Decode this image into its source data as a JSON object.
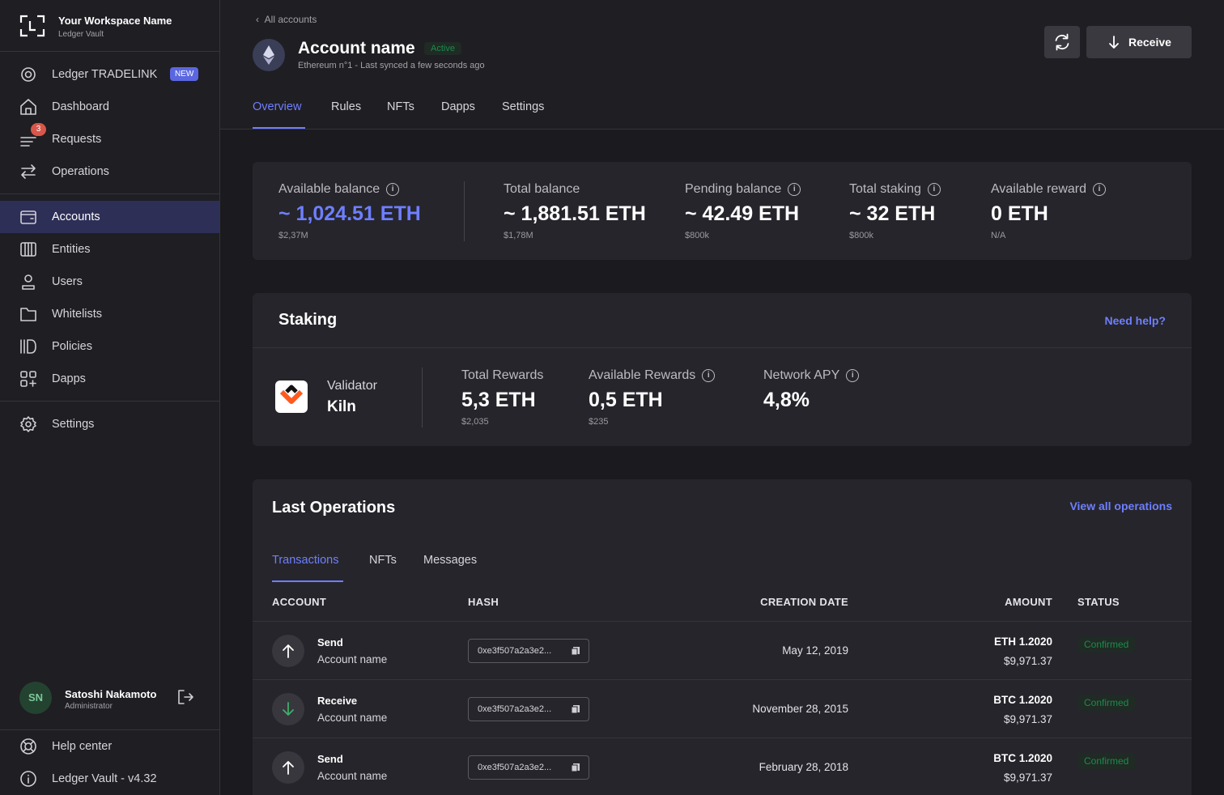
{
  "workspace": {
    "name": "Your Workspace Name",
    "sub": "Ledger Vault"
  },
  "nav": {
    "tradelink": "Ledger TRADELINK",
    "tradelink_badge": "NEW",
    "dashboard": "Dashboard",
    "requests": "Requests",
    "requests_count": "3",
    "operations": "Operations",
    "accounts": "Accounts",
    "entities": "Entities",
    "users": "Users",
    "whitelists": "Whitelists",
    "policies": "Policies",
    "dapps": "Dapps",
    "settings": "Settings"
  },
  "user": {
    "initials": "SN",
    "name": "Satoshi Nakamoto",
    "role": "Administrator"
  },
  "footer": {
    "help": "Help center",
    "version": "Ledger Vault - v4.32"
  },
  "header": {
    "back": "All accounts",
    "account_name": "Account name",
    "status": "Active",
    "subtitle": "Ethereum n°1 - Last synced a few seconds ago",
    "receive": "Receive",
    "tabs": [
      "Overview",
      "Rules",
      "NFTs",
      "Dapps",
      "Settings"
    ]
  },
  "balances": [
    {
      "label": "Available balance",
      "value": "~ 1,024.51 ETH",
      "sub": "$2,37M"
    },
    {
      "label": "Total balance",
      "value": "~ 1,881.51 ETH",
      "sub": "$1,78M"
    },
    {
      "label": "Pending balance",
      "value": "~ 42.49 ETH",
      "sub": "$800k"
    },
    {
      "label": "Total staking",
      "value": "~ 32 ETH",
      "sub": "$800k"
    },
    {
      "label": "Available reward",
      "value": "0 ETH",
      "sub": "N/A"
    }
  ],
  "staking": {
    "title": "Staking",
    "help": "Need help?",
    "validator_label": "Validator",
    "validator_name": "Kiln",
    "stats": [
      {
        "label": "Total Rewards",
        "value": "5,3 ETH",
        "sub": "$2,035"
      },
      {
        "label": "Available Rewards",
        "value": "0,5 ETH",
        "sub": "$235"
      },
      {
        "label": "Network APY",
        "value": "4,8%",
        "sub": ""
      }
    ]
  },
  "operations": {
    "title": "Last Operations",
    "view_all": "View all operations",
    "tabs": [
      "Transactions",
      "NFTs",
      "Messages"
    ],
    "columns": [
      "ACCOUNT",
      "HASH",
      "CREATION DATE",
      "AMOUNT",
      "STATUS"
    ],
    "rows": [
      {
        "type": "Send",
        "account": "Account name",
        "hash": "0xe3f507a2a3e2...",
        "date": "May 12, 2019",
        "amount": "ETH 1.2020",
        "fiat": "$9,971.37",
        "status": "Confirmed"
      },
      {
        "type": "Receive",
        "account": "Account name",
        "hash": "0xe3f507a2a3e2...",
        "date": "November 28, 2015",
        "amount": "BTC 1.2020",
        "fiat": "$9,971.37",
        "status": "Confirmed"
      },
      {
        "type": "Send",
        "account": "Account name",
        "hash": "0xe3f507a2a3e2...",
        "date": "February 28, 2018",
        "amount": "BTC 1.2020",
        "fiat": "$9,971.37",
        "status": "Confirmed"
      }
    ]
  },
  "colors": {
    "accent": "#6e7fff",
    "success": "#1d8a4d",
    "sidebar_active": "#2e2f57",
    "badge": "#d8574a"
  }
}
